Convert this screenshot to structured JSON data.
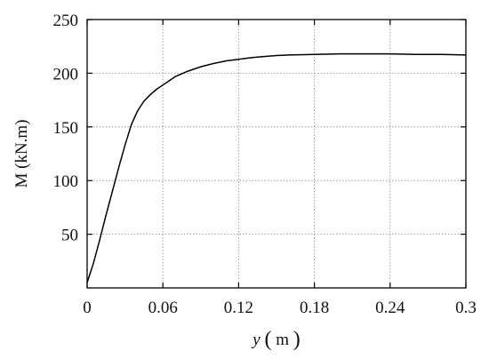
{
  "chart_data": {
    "type": "line",
    "xlabel_main": "y",
    "xlabel_unit": "m",
    "ylabel": "M (kN.m)",
    "xlim": [
      0,
      0.3
    ],
    "ylim": [
      0,
      250
    ],
    "xticks": [
      0,
      0.06,
      0.12,
      0.18,
      0.24,
      0.3
    ],
    "xtick_labels": [
      "0",
      "0.06",
      "0.12",
      "0.18",
      "0.24",
      "0.3"
    ],
    "yticks": [
      50,
      100,
      150,
      200,
      250
    ],
    "ytick_labels": [
      "50",
      "100",
      "150",
      "200",
      "250"
    ],
    "grid": true,
    "colors": {
      "series": "#000000",
      "grid": "#8a8a8a"
    },
    "series": [
      {
        "x": [
          0,
          0.005,
          0.01,
          0.015,
          0.02,
          0.025,
          0.03,
          0.035,
          0.04,
          0.045,
          0.05,
          0.055,
          0.06,
          0.065,
          0.07,
          0.08,
          0.09,
          0.1,
          0.11,
          0.12,
          0.13,
          0.14,
          0.15,
          0.16,
          0.18,
          0.2,
          0.22,
          0.24,
          0.26,
          0.28,
          0.3
        ],
        "y": [
          5,
          23,
          45,
          68,
          90,
          112,
          133,
          152,
          165,
          174,
          180,
          185,
          189,
          193,
          197,
          202,
          206,
          209,
          211.5,
          213,
          214.5,
          215.5,
          216.5,
          217,
          217.5,
          218,
          218,
          218,
          217.5,
          217.5,
          217
        ]
      }
    ]
  }
}
